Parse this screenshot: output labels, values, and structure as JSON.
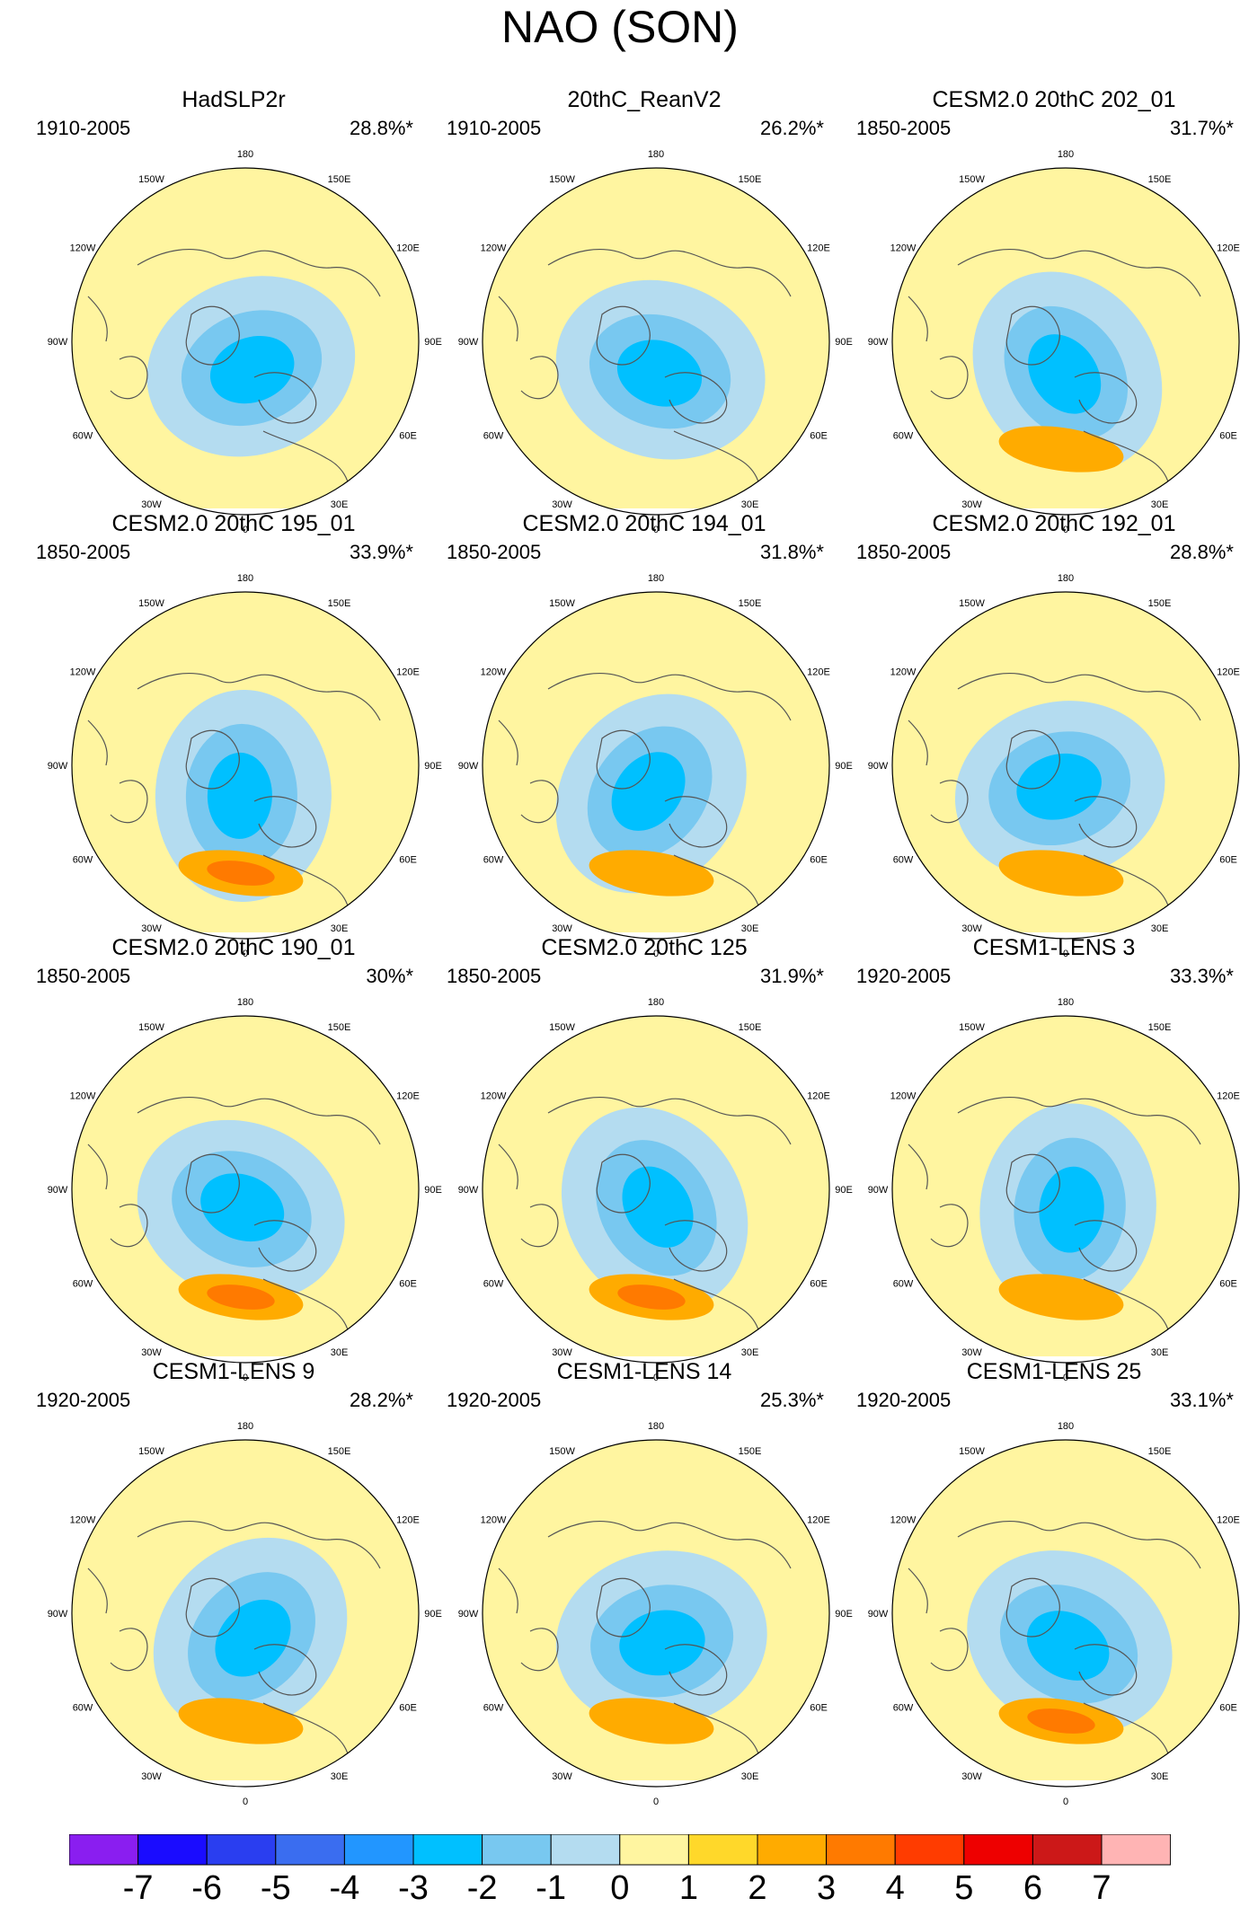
{
  "title": "NAO (SON)",
  "panels": [
    {
      "title": "HadSLP2r",
      "period": "1910-2005",
      "explained": "28.8%*",
      "min_level": -3,
      "max_level": 0
    },
    {
      "title": "20thC_ReanV2",
      "period": "1910-2005",
      "explained": "26.2%*",
      "min_level": -3,
      "max_level": 1
    },
    {
      "title": "CESM2.0 20thC 202_01",
      "period": "1850-2005",
      "explained": "31.7%*",
      "min_level": -3,
      "max_level": 2
    },
    {
      "title": "CESM2.0 20thC 195_01",
      "period": "1850-2005",
      "explained": "33.9%*",
      "min_level": -3,
      "max_level": 3
    },
    {
      "title": "CESM2.0 20thC 194_01",
      "period": "1850-2005",
      "explained": "31.8%*",
      "min_level": -3,
      "max_level": 2
    },
    {
      "title": "CESM2.0 20thC 192_01",
      "period": "1850-2005",
      "explained": "28.8%*",
      "min_level": -3,
      "max_level": 2
    },
    {
      "title": "CESM2.0 20thC 190_01",
      "period": "1850-2005",
      "explained": "30%*",
      "min_level": -3,
      "max_level": 3
    },
    {
      "title": "CESM2.0 20thC 125",
      "period": "1850-2005",
      "explained": "31.9%*",
      "min_level": -3,
      "max_level": 3
    },
    {
      "title": "CESM1-LENS 3",
      "period": "1920-2005",
      "explained": "33.3%*",
      "min_level": -3,
      "max_level": 2
    },
    {
      "title": "CESM1-LENS 9",
      "period": "1920-2005",
      "explained": "28.2%*",
      "min_level": -3,
      "max_level": 2
    },
    {
      "title": "CESM1-LENS 14",
      "period": "1920-2005",
      "explained": "25.3%*",
      "min_level": -3,
      "max_level": 2
    },
    {
      "title": "CESM1-LENS 25",
      "period": "1920-2005",
      "explained": "33.1%*",
      "min_level": -3,
      "max_level": 3
    }
  ],
  "longitude_labels": [
    "180",
    "150E",
    "120E",
    "90E",
    "60E",
    "30E",
    "0",
    "30W",
    "60W",
    "90W",
    "120W",
    "150W"
  ],
  "colorbar": {
    "labels": [
      "-7",
      "-6",
      "-5",
      "-4",
      "-3",
      "-2",
      "-1",
      "0",
      "1",
      "2",
      "3",
      "4",
      "5",
      "6",
      "7"
    ],
    "colors": [
      "#8a1ef0",
      "#1a0cff",
      "#2a3ef0",
      "#3a6df0",
      "#2296ff",
      "#00c0ff",
      "#78c8f0",
      "#b4dcf0",
      "#fff5a0",
      "#ffd82a",
      "#ffab00",
      "#ff7a00",
      "#ff3c00",
      "#ee0000",
      "#cc1818",
      "#ffb4b4"
    ]
  }
}
